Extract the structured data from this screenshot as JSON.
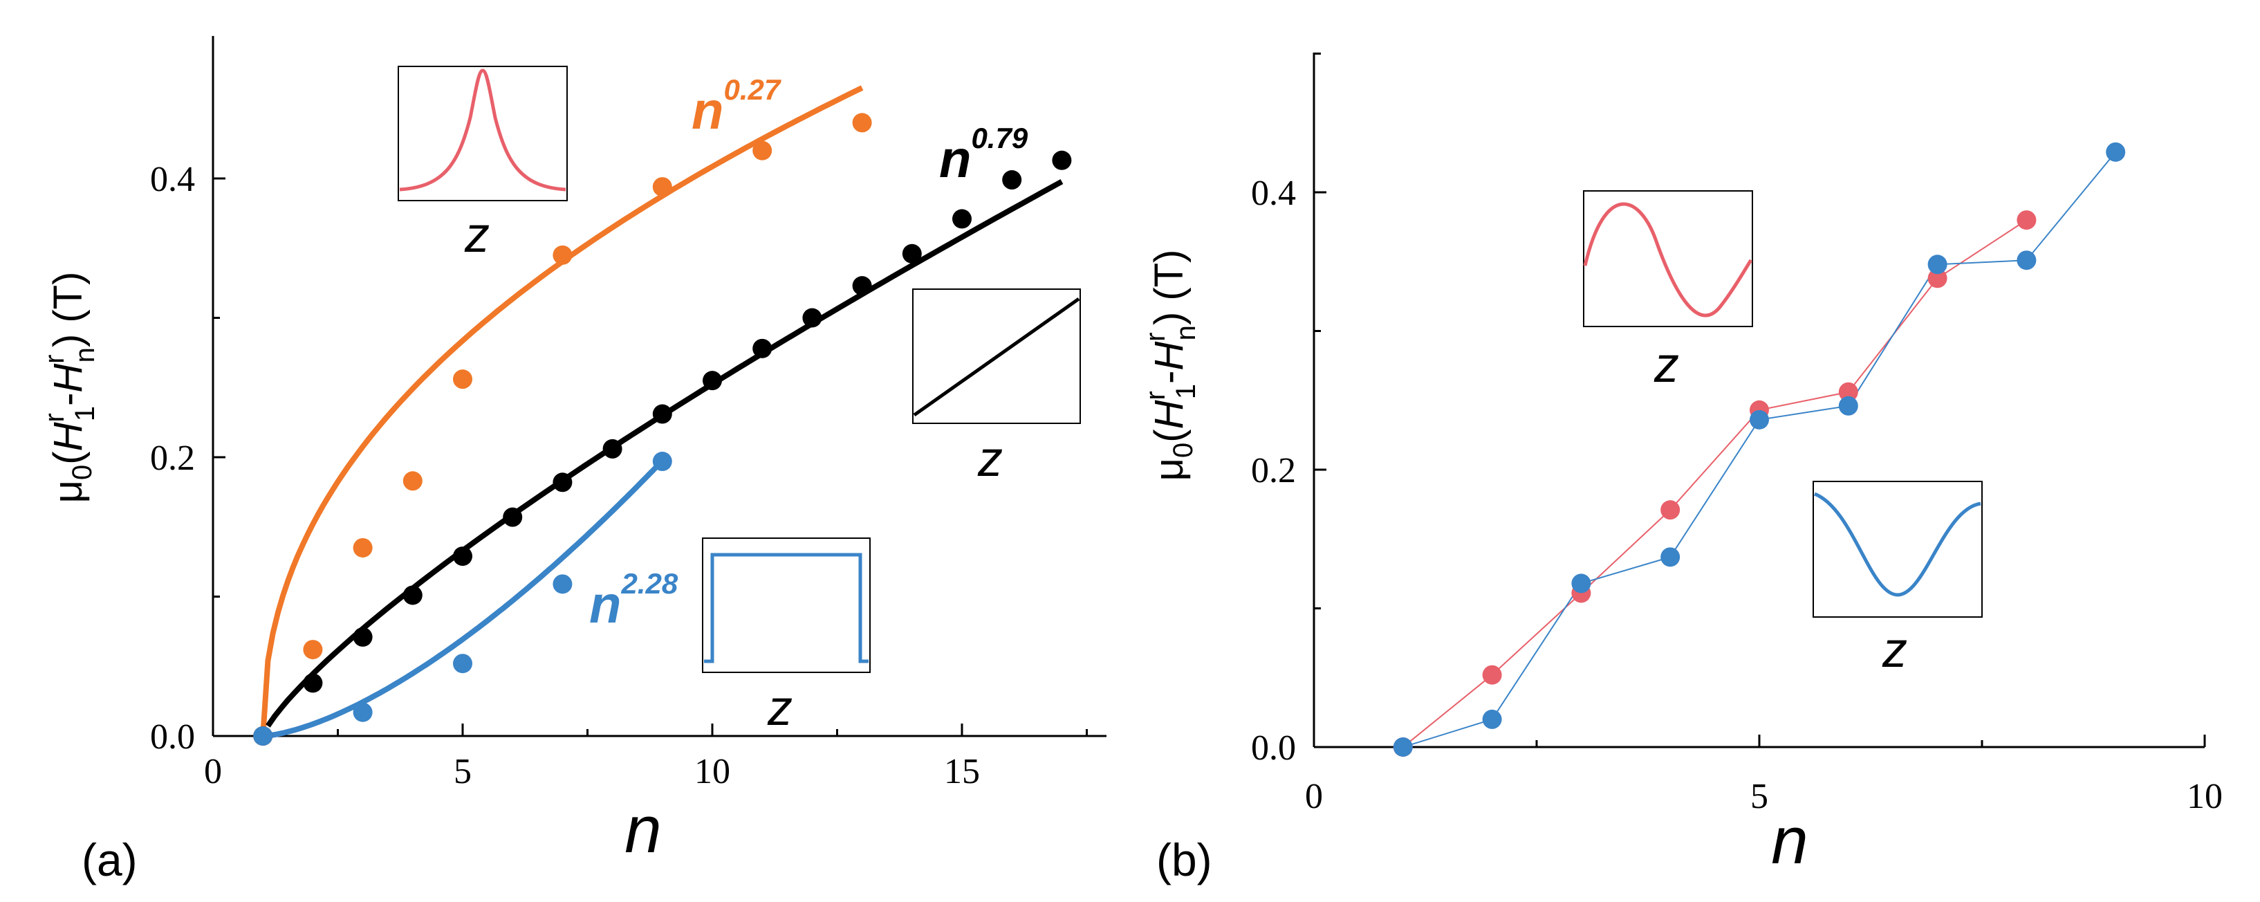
{
  "colors": {
    "orange": "#f07828",
    "black": "#000000",
    "blue": "#3a84c8",
    "red": "#e8606a",
    "blue_b": "#3a84c8"
  },
  "chart_data": [
    {
      "panel": "(a)",
      "type": "scatter",
      "xlabel": "n",
      "ylabel": {
        "mu": "μ",
        "mu_sub": "0",
        "paren_open": "(",
        "h": "H",
        "h1_sup": "r",
        "h1_sub": "1",
        "dash": "-",
        "hn_sup": "r",
        "hn_sub": "n",
        "paren_close": ")",
        "unit": " (T)"
      },
      "xlim": [
        0,
        18
      ],
      "ylim": [
        0,
        0.5
      ],
      "xticks": [
        "0",
        "5",
        "10",
        "15"
      ],
      "yticks": [
        "0.0",
        "0.2",
        "0.4"
      ],
      "series": [
        {
          "name": "orange",
          "fit_label": "n",
          "fit_exp": "0.27",
          "x": [
            1,
            2,
            3,
            4,
            5,
            7,
            9,
            11,
            13
          ],
          "y": [
            0.0,
            0.062,
            0.135,
            0.183,
            0.256,
            0.345,
            0.394,
            0.42,
            0.44
          ]
        },
        {
          "name": "black",
          "fit_label": "n",
          "fit_exp": "0.79",
          "x": [
            1,
            2,
            3,
            4,
            5,
            6,
            7,
            8,
            9,
            10,
            11,
            12,
            13,
            14,
            15,
            16,
            17
          ],
          "y": [
            0.0,
            0.038,
            0.071,
            0.101,
            0.129,
            0.157,
            0.182,
            0.206,
            0.231,
            0.255,
            0.278,
            0.3,
            0.323,
            0.346,
            0.371,
            0.399,
            0.413
          ]
        },
        {
          "name": "blue",
          "fit_label": "n",
          "fit_exp": "2.28",
          "x": [
            1,
            3,
            5,
            7,
            9
          ],
          "y": [
            0.0,
            0.017,
            0.052,
            0.109,
            0.197
          ]
        }
      ],
      "insets": [
        {
          "profile": "peak",
          "xlabel": "z"
        },
        {
          "profile": "linear",
          "xlabel": "z"
        },
        {
          "profile": "flat",
          "xlabel": "z"
        }
      ]
    },
    {
      "panel": "(b)",
      "type": "line",
      "xlabel": "n",
      "ylabel": {
        "mu": "μ",
        "mu_sub": "0",
        "paren_open": "(",
        "h": "H",
        "h1_sup": "r",
        "h1_sub": "1",
        "dash": "-",
        "hn_sup": "r",
        "hn_sub": "n",
        "paren_close": ")",
        "unit": " (T)"
      },
      "xlim": [
        0,
        10
      ],
      "ylim": [
        0,
        0.5
      ],
      "xticks": [
        "0",
        "5",
        "10"
      ],
      "yticks": [
        "0.0",
        "0.2",
        "0.4"
      ],
      "series": [
        {
          "name": "red",
          "x": [
            1,
            2,
            3,
            4,
            5,
            6,
            7,
            8
          ],
          "y": [
            0.0,
            0.052,
            0.111,
            0.171,
            0.243,
            0.256,
            0.338,
            0.38
          ]
        },
        {
          "name": "blue",
          "x": [
            1,
            2,
            3,
            4,
            5,
            6,
            7,
            8,
            9
          ],
          "y": [
            0.0,
            0.02,
            0.118,
            0.137,
            0.236,
            0.246,
            0.348,
            0.351,
            0.429
          ]
        }
      ],
      "insets": [
        {
          "profile": "sine",
          "xlabel": "z"
        },
        {
          "profile": "cosine-dip",
          "xlabel": "z"
        }
      ]
    }
  ]
}
